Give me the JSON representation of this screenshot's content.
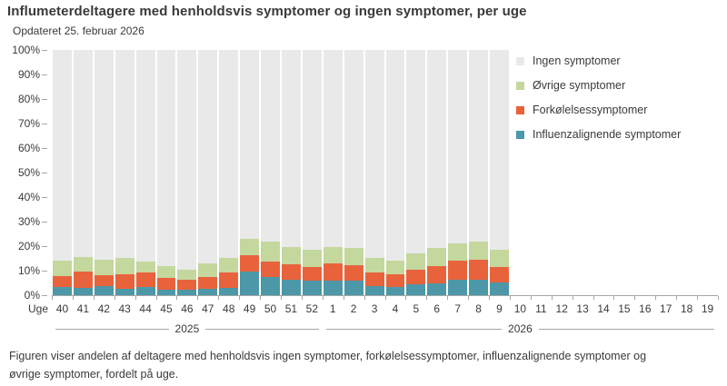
{
  "header": {
    "title": "Influmeterdeltagere med henholdsvis symptomer og ingen symptomer, per uge",
    "subtitle": "Opdateret 25. februar 2026"
  },
  "colors": {
    "ingen_symptomer": "#e9e9e9",
    "ovrige_symptomer": "#c4d79d",
    "forkolelsessymptomer": "#e8633c",
    "influenzalignende_symptomer": "#4c97a8",
    "axis": "#a6a6a6",
    "text": "#3a3a3a"
  },
  "legend": {
    "items": [
      {
        "label": "Ingen symptomer",
        "color": "#e9e9e9"
      },
      {
        "label": "Øvrige symptomer",
        "color": "#c4d79d"
      },
      {
        "label": "Forkølelsessymptomer",
        "color": "#e8633c"
      },
      {
        "label": "Influenzalignende symptomer",
        "color": "#4c97a8"
      }
    ]
  },
  "chart_data": {
    "type": "bar",
    "stacked": true,
    "percent_stacked": true,
    "grid": false,
    "legend_position": "top-right",
    "ylim": [
      0,
      100
    ],
    "ytick_step": 10,
    "ytick_suffix": "%",
    "xaxis_prefix": "Uge",
    "categories": [
      "40",
      "41",
      "42",
      "43",
      "44",
      "45",
      "46",
      "47",
      "48",
      "49",
      "50",
      "51",
      "52",
      "1",
      "2",
      "3",
      "4",
      "5",
      "6",
      "7",
      "8",
      "9",
      "10",
      "11",
      "12",
      "13",
      "14",
      "15",
      "16",
      "17",
      "18",
      "19"
    ],
    "year_groups": [
      {
        "label": "2025",
        "start_index": 0,
        "end_index": 12
      },
      {
        "label": "2026",
        "start_index": 13,
        "end_index": 31
      }
    ],
    "series": [
      {
        "name": "Influenzalignende symptomer",
        "color": "#4c97a8",
        "values": [
          3.3,
          3.0,
          3.6,
          2.7,
          3.3,
          2.4,
          2.1,
          2.7,
          3.0,
          9.5,
          7.4,
          6.4,
          6.1,
          5.8,
          5.8,
          3.6,
          3.2,
          4.3,
          5.0,
          6.4,
          6.4,
          5.2,
          null,
          null,
          null,
          null,
          null,
          null,
          null,
          null,
          null,
          null
        ]
      },
      {
        "name": "Forkølelsessymptomer",
        "color": "#e8633c",
        "values": [
          4.6,
          6.8,
          4.7,
          5.9,
          5.9,
          4.7,
          4.3,
          4.8,
          6.4,
          6.9,
          6.4,
          6.2,
          5.5,
          7.0,
          6.5,
          5.8,
          5.3,
          6.0,
          7.0,
          7.7,
          8.0,
          6.3,
          null,
          null,
          null,
          null,
          null,
          null,
          null,
          null,
          null,
          null
        ]
      },
      {
        "name": "Øvrige symptomer",
        "color": "#c4d79d",
        "values": [
          6.0,
          5.8,
          6.2,
          6.5,
          4.4,
          4.7,
          4.1,
          5.6,
          5.9,
          6.4,
          8.0,
          7.1,
          7.0,
          6.9,
          6.8,
          5.8,
          5.6,
          6.6,
          7.1,
          7.0,
          7.5,
          7.0,
          null,
          null,
          null,
          null,
          null,
          null,
          null,
          null,
          null,
          null
        ]
      },
      {
        "name": "Ingen symptomer",
        "color": "#e9e9e9",
        "values": [
          86.1,
          84.4,
          85.5,
          84.9,
          86.4,
          88.2,
          89.5,
          86.9,
          84.7,
          77.2,
          78.2,
          80.3,
          81.4,
          80.3,
          80.9,
          84.8,
          85.9,
          83.1,
          80.9,
          78.9,
          78.1,
          81.5,
          null,
          null,
          null,
          null,
          null,
          null,
          null,
          null,
          null,
          null
        ]
      }
    ]
  },
  "footer": {
    "text": "Figuren viser andelen af deltagere med henholdsvis ingen symptomer, forkølelsessymptomer, influenzalignende symptomer og øvrige symptomer, fordelt på uge."
  }
}
